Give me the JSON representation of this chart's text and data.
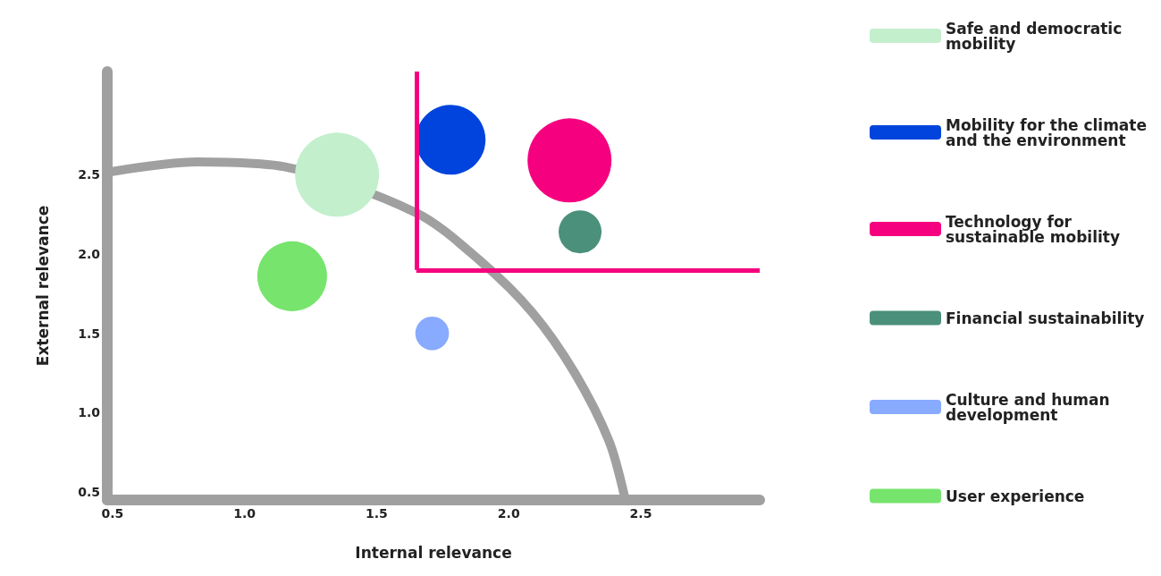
{
  "chart_data": {
    "type": "bubble",
    "xlabel": "Internal relevance",
    "ylabel": "External relevance",
    "xlim": [
      0.48,
      2.95
    ],
    "ylim": [
      0.45,
      3.15
    ],
    "xticks": [
      {
        "value": 0.5,
        "label": "0.5"
      },
      {
        "value": 1.0,
        "label": "1.0"
      },
      {
        "value": 1.5,
        "label": "1.5"
      },
      {
        "value": 2.0,
        "label": "2.0"
      },
      {
        "value": 2.5,
        "label": "2.5"
      }
    ],
    "yticks": [
      {
        "value": 0.5,
        "label": "0.5"
      },
      {
        "value": 1.0,
        "label": "1.0"
      },
      {
        "value": 1.5,
        "label": "1.5"
      },
      {
        "value": 2.0,
        "label": "2.0"
      },
      {
        "value": 2.5,
        "label": "2.5"
      }
    ],
    "grid": false,
    "legend": "right",
    "series": [
      {
        "type": "line",
        "color": "#a0a0a0",
        "x": [
          0.5,
          0.82,
          1.15,
          1.65,
          1.89,
          2.09,
          2.25,
          2.38,
          2.44
        ],
        "values": [
          2.52,
          2.58,
          2.55,
          2.26,
          1.96,
          1.63,
          1.25,
          0.82,
          0.46
        ]
      },
      {
        "name": "Safe and democratic mobility",
        "color": "#c3efcc",
        "x": [
          1.35
        ],
        "values": [
          2.5
        ],
        "sizes": [
          1
        ]
      },
      {
        "name": "Mobility for the climate and the environment",
        "color": "#0044dd",
        "x": [
          1.78
        ],
        "values": [
          2.72
        ],
        "sizes": [
          0.69
        ]
      },
      {
        "name": "Technology for sustainable mobility",
        "color": "#f5007f",
        "x": [
          2.23
        ],
        "values": [
          2.59
        ],
        "sizes": [
          1
        ]
      },
      {
        "name": "Financial sustainability",
        "color": "#4a907a",
        "x": [
          2.27
        ],
        "values": [
          2.14
        ],
        "sizes": [
          0.26
        ]
      },
      {
        "name": "Culture and human development",
        "color": "#88aaff",
        "x": [
          1.71
        ],
        "values": [
          1.5
        ],
        "sizes": [
          0.16
        ]
      },
      {
        "name": "User experience",
        "color": "#77e46d",
        "x": [
          1.18
        ],
        "values": [
          1.86
        ],
        "sizes": [
          0.69
        ]
      }
    ],
    "ref_lines": [
      {
        "axis": "x",
        "value": 1.65,
        "color": "#f5007f"
      },
      {
        "axis": "y",
        "value": 1.9,
        "color": "#f5007f"
      }
    ]
  }
}
